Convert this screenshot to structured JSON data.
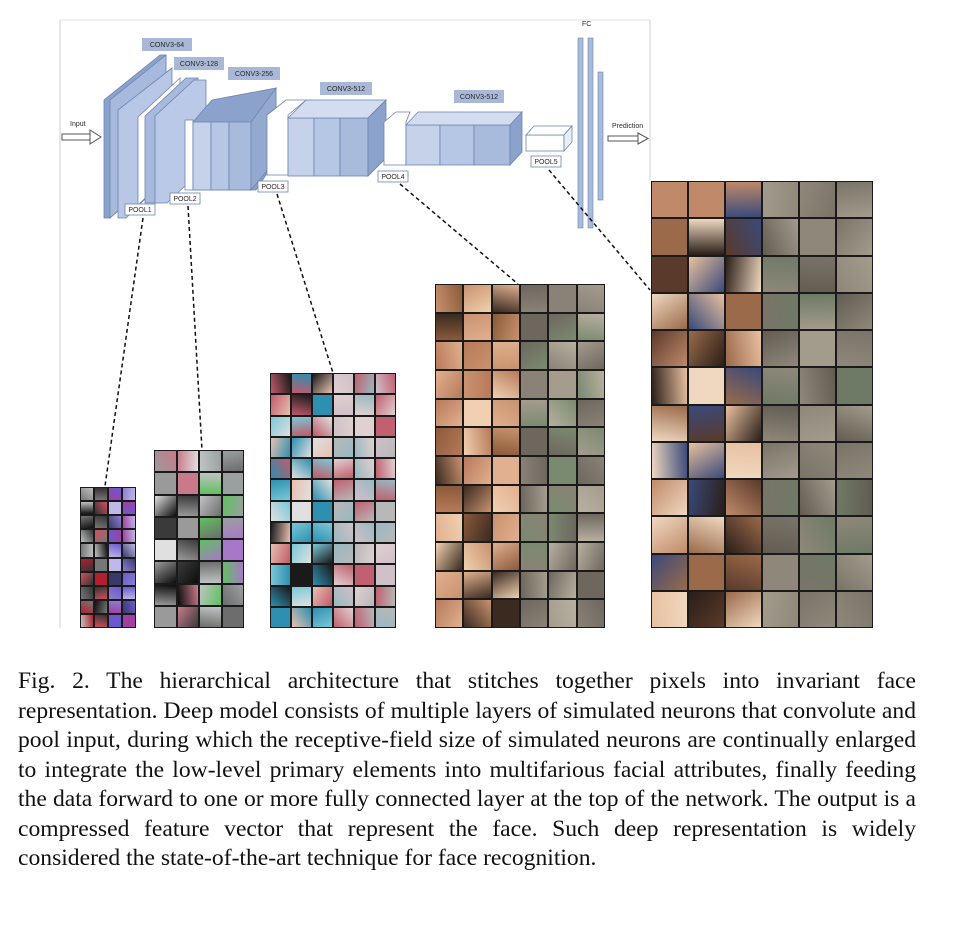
{
  "architecture": {
    "input_label": "Input",
    "output_label": "Prediction",
    "fc_label": "FC",
    "conv_labels": [
      "CONV3-64",
      "CONV3-128",
      "CONV3-256",
      "CONV3-512",
      "CONV3-512"
    ],
    "pool_labels": [
      "POOL1",
      "POOL2",
      "POOL3",
      "POOL4",
      "POOL5"
    ],
    "block_color": "#9fb3d6",
    "label_box_color": "#a8b8d6"
  },
  "panels": [
    {
      "name": "pool1-features",
      "content": "edge/color filter visualizations"
    },
    {
      "name": "pool2-features",
      "content": "texture filter visualizations"
    },
    {
      "name": "pool3-features",
      "content": "facial part patch visualizations"
    },
    {
      "name": "pool4-features",
      "content": "face crops with feature maps"
    },
    {
      "name": "pool5-features",
      "content": "full faces with feature maps"
    }
  ],
  "caption": {
    "text": "Fig. 2.  The hierarchical architecture that stitches together pixels into invariant face representation. Deep model consists of multiple layers of simulated neurons that convolute and pool input, during which the receptive-field size of simulated neurons are continually enlarged to integrate the low-level primary elements into multifarious facial attributes, finally feeding the data forward to one or more fully connected layer at the top of the network. The output is a compressed feature vector that represent the face. Such deep representation is widely considered the state-of-the-art technique for face recognition."
  }
}
